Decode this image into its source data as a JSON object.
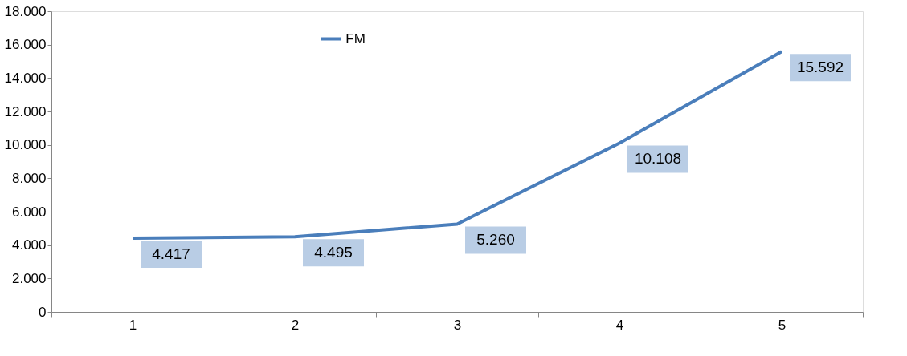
{
  "chart_data": {
    "type": "line",
    "categories": [
      "1",
      "2",
      "3",
      "4",
      "5"
    ],
    "series": [
      {
        "name": "FM",
        "color": "#4a7ebb",
        "values": [
          4417,
          4495,
          5260,
          10108,
          15592
        ]
      }
    ],
    "value_labels": [
      "4.417",
      "4.495",
      "5.260",
      "10.108",
      "15.592"
    ],
    "ylim": [
      0,
      18000
    ],
    "yticks": [
      {
        "value": 0,
        "label": "0"
      },
      {
        "value": 2000,
        "label": "2.000"
      },
      {
        "value": 4000,
        "label": "4.000"
      },
      {
        "value": 6000,
        "label": "6.000"
      },
      {
        "value": 8000,
        "label": "8.000"
      },
      {
        "value": 10000,
        "label": "10.000"
      },
      {
        "value": 12000,
        "label": "12.000"
      },
      {
        "value": 14000,
        "label": "14.000"
      },
      {
        "value": 16000,
        "label": "16.000"
      },
      {
        "value": 18000,
        "label": "18.000"
      }
    ],
    "grid": false,
    "legend": "top",
    "marker": "none",
    "line_style": "solid"
  }
}
